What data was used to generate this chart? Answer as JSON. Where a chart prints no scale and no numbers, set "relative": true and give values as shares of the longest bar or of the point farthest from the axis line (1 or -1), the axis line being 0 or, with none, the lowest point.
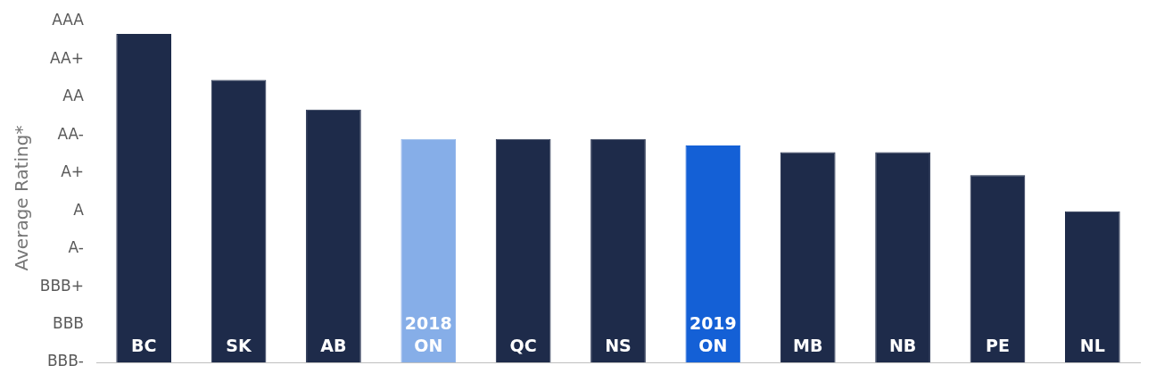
{
  "chart_data": {
    "type": "bar",
    "ylabel": "Average Rating*",
    "relative": true,
    "categories": [
      "BC",
      "SK",
      "AB",
      "2018 ON",
      "QC",
      "NS",
      "2019 ON",
      "MB",
      "NB",
      "PE",
      "NL"
    ],
    "values": [
      1,
      0.86,
      0.77,
      0.68,
      0.68,
      0.68,
      0.66,
      0.64,
      0.64,
      0.57,
      0.46
    ],
    "colors": [
      "#1e2b4a",
      "#1e2b4a",
      "#1e2b4a",
      "#86aee8",
      "#1e2b4a",
      "#1e2b4a",
      "#1460d6",
      "#1e2b4a",
      "#1e2b4a",
      "#1e2b4a",
      "#1e2b4a"
    ],
    "annotations": [
      "AAA",
      "AA+",
      "AA",
      "AA-",
      "A+",
      "A",
      "A-",
      "BBB+",
      "BBB",
      "BBB-"
    ],
    "grid": false,
    "legend": false
  }
}
